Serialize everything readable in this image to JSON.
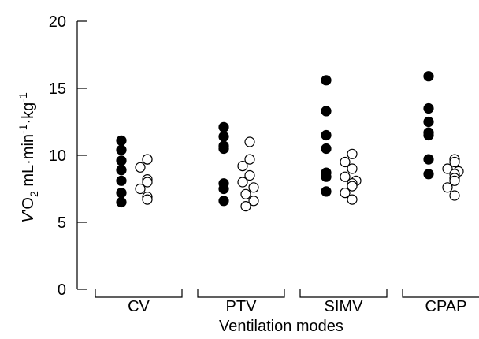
{
  "chart_data": {
    "type": "scatter",
    "title": "",
    "xlabel": "Ventilation modes",
    "ylabel": "V'O2 mL·min-1·kg-1",
    "ylabel_parts": {
      "v": "V",
      "prime": "'",
      "o": "O",
      "o_sub": "2",
      "rest1": " mL·min",
      "sup1": "-1",
      "rest2": "·kg",
      "sup2": "-1"
    },
    "ylim": [
      0,
      20
    ],
    "yticks": [
      "0",
      "5",
      "10",
      "15",
      "20"
    ],
    "categories": [
      "CV",
      "PTV",
      "SIMV",
      "CPAP"
    ],
    "grid": false,
    "series": [
      {
        "marker": "filled",
        "color": "#000000",
        "values": [
          [
            11.1,
            10.4,
            9.6,
            8.9,
            8.1,
            7.2,
            6.5
          ],
          [
            12.1,
            11.4,
            10.7,
            10.5,
            7.9,
            7.5,
            6.6
          ],
          [
            15.6,
            13.3,
            11.5,
            10.5,
            8.7,
            8.4,
            7.3
          ],
          [
            15.9,
            13.5,
            12.5,
            11.7,
            11.5,
            9.7,
            8.6
          ]
        ]
      },
      {
        "marker": "open",
        "color": "#000000",
        "values": [
          [
            9.7,
            9.7,
            9.1,
            8.2,
            8.0,
            7.5,
            6.9,
            6.7
          ],
          [
            11.0,
            9.7,
            9.2,
            8.5,
            8.0,
            7.6,
            7.1,
            6.6,
            6.2
          ],
          [
            10.1,
            9.5,
            9.0,
            8.4,
            8.1,
            7.9,
            7.7,
            7.2,
            6.7
          ],
          [
            9.7,
            9.5,
            9.0,
            8.8,
            8.6,
            8.3,
            8.1,
            7.6,
            7.0
          ]
        ]
      }
    ]
  }
}
